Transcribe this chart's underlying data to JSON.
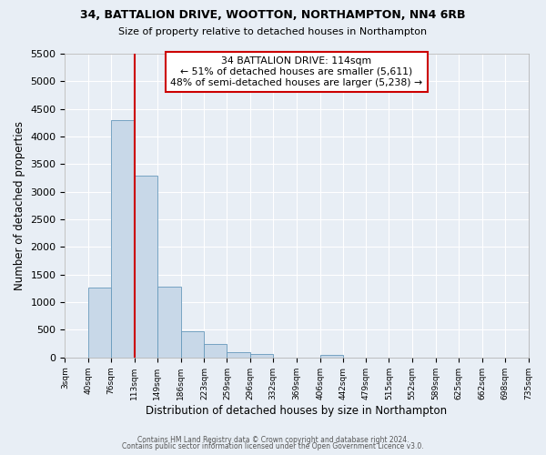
{
  "title1": "34, BATTALION DRIVE, WOOTTON, NORTHAMPTON, NN4 6RB",
  "title2": "Size of property relative to detached houses in Northampton",
  "xlabel": "Distribution of detached houses by size in Northampton",
  "ylabel": "Number of detached properties",
  "bin_edges": [
    3,
    40,
    76,
    113,
    149,
    186,
    223,
    259,
    296,
    332,
    369,
    406,
    442,
    479,
    515,
    552,
    589,
    625,
    662,
    698,
    735
  ],
  "bin_counts": [
    0,
    1270,
    4300,
    3290,
    1290,
    480,
    240,
    100,
    60,
    0,
    0,
    55,
    0,
    0,
    0,
    0,
    0,
    0,
    0,
    0
  ],
  "property_line_x": 113,
  "bar_color": "#c8d8e8",
  "bar_edge_color": "#6699bb",
  "line_color": "#cc0000",
  "annotation_title": "34 BATTALION DRIVE: 114sqm",
  "annotation_line1": "← 51% of detached houses are smaller (5,611)",
  "annotation_line2": "48% of semi-detached houses are larger (5,238) →",
  "annotation_box_color": "#ffffff",
  "annotation_box_edge": "#cc0000",
  "ylim": [
    0,
    5500
  ],
  "yticks": [
    0,
    500,
    1000,
    1500,
    2000,
    2500,
    3000,
    3500,
    4000,
    4500,
    5000,
    5500
  ],
  "footer1": "Contains HM Land Registry data © Crown copyright and database right 2024.",
  "footer2": "Contains public sector information licensed under the Open Government Licence v3.0.",
  "background_color": "#e8eef5",
  "grid_color": "#ffffff"
}
